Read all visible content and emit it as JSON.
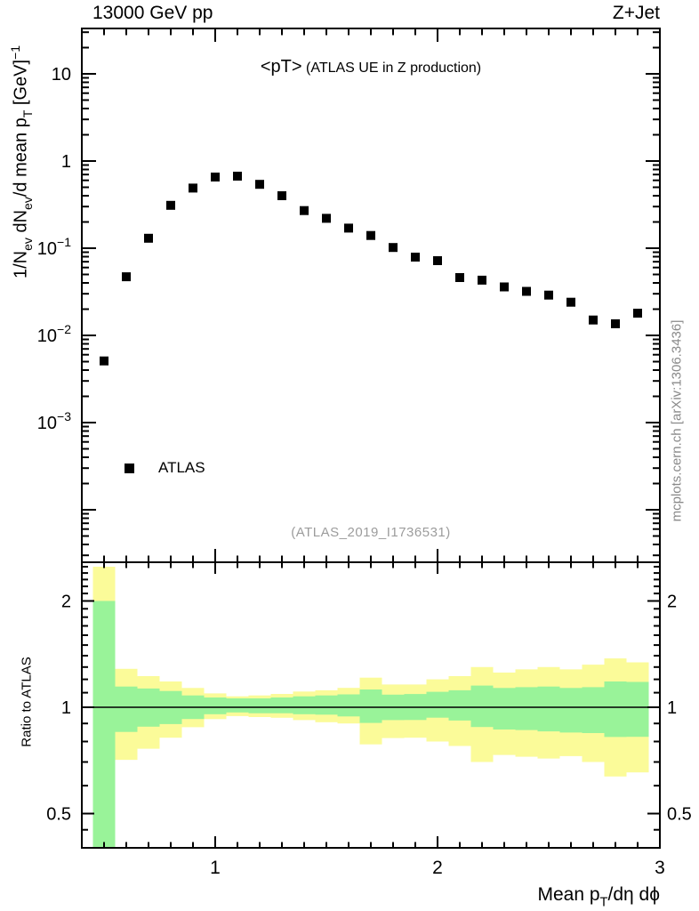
{
  "header": {
    "energy": "13000 GeV pp",
    "process": "Z+Jet"
  },
  "title": {
    "main": "<pT>",
    "sub": "(ATLAS UE in Z production)"
  },
  "legend": {
    "label": "ATLAS",
    "marker": "filled-square-icon"
  },
  "watermark": "(ATLAS_2019_I1736531)",
  "credit": "mcplots.cern.ch [arXiv:1306.3436]",
  "colors": {
    "band_yellow": "#fbfb99",
    "band_green": "#99f399",
    "marker": "#000000",
    "frame": "#000000",
    "watermark_gray": "#9c9c9c",
    "credit_gray": "#8a8a8a"
  },
  "axes": {
    "x": {
      "min": 0.4,
      "max": 3.0,
      "scale": "linear",
      "minor_step": 0.1,
      "major_ticks": [
        {
          "v": 1,
          "label": "1"
        },
        {
          "v": 2,
          "label": "2"
        },
        {
          "v": 3,
          "label": "3"
        }
      ],
      "label_parts": [
        {
          "t": "Mean p"
        },
        {
          "t": "T",
          "s": "sub"
        },
        {
          "t": "/dη dϕ"
        }
      ]
    },
    "y_main": {
      "min": 2.5e-05,
      "max": 33,
      "scale": "log",
      "labeled_ticks": [
        {
          "v": 10,
          "base": "10",
          "exp": ""
        },
        {
          "v": 1,
          "base": "1",
          "exp": ""
        },
        {
          "v": 0.1,
          "base": "10",
          "exp": "−1"
        },
        {
          "v": 0.01,
          "base": "10",
          "exp": "−2"
        },
        {
          "v": 0.001,
          "base": "10",
          "exp": "−3"
        }
      ],
      "label_parts": [
        {
          "t": "1/N"
        },
        {
          "t": "ev",
          "s": "sub"
        },
        {
          "t": " dN"
        },
        {
          "t": "ev",
          "s": "sub"
        },
        {
          "t": "/d mean p"
        },
        {
          "t": "T",
          "s": "sub"
        },
        {
          "t": " [GeV]"
        },
        {
          "t": "−1",
          "s": "sup"
        }
      ]
    },
    "y_ratio": {
      "min": 0.4,
      "max": 2.57,
      "scale": "log",
      "labeled_ticks": [
        {
          "v": 2,
          "label": "2"
        },
        {
          "v": 1,
          "label": "1"
        },
        {
          "v": 0.5,
          "label": "0.5"
        }
      ],
      "label": "Ratio to ATLAS"
    }
  },
  "chart_data": [
    {
      "type": "scatter",
      "title": "<pT> (ATLAS UE in Z production)",
      "xlabel": "Mean pT/dη dϕ",
      "ylabel": "1/Nev dNev/d mean pT [GeV]^-1",
      "xlim": [
        0.4,
        3.0
      ],
      "ylim": [
        2.5e-05,
        33
      ],
      "xscale": "linear",
      "yscale": "log",
      "series": [
        {
          "name": "ATLAS",
          "marker": "filled-square",
          "color": "#000000",
          "x": [
            0.5,
            0.6,
            0.7,
            0.8,
            0.9,
            1.0,
            1.1,
            1.2,
            1.3,
            1.4,
            1.5,
            1.6,
            1.7,
            1.8,
            1.9,
            2.0,
            2.1,
            2.2,
            2.3,
            2.4,
            2.5,
            2.6,
            2.7,
            2.8,
            2.9
          ],
          "y": [
            0.0051,
            0.047,
            0.13,
            0.31,
            0.49,
            0.655,
            0.67,
            0.54,
            0.4,
            0.27,
            0.22,
            0.17,
            0.14,
            0.102,
            0.079,
            0.072,
            0.046,
            0.043,
            0.036,
            0.032,
            0.029,
            0.024,
            0.015,
            0.0136,
            0.018
          ]
        }
      ]
    },
    {
      "type": "area",
      "name": "ratio-uncertainty-bands",
      "ylabel": "Ratio to ATLAS",
      "ylim": [
        0.4,
        2.57
      ],
      "yscale": "log",
      "reference_line": 1,
      "bin_width": 0.1,
      "x": [
        0.5,
        0.6,
        0.7,
        0.8,
        0.9,
        1.0,
        1.1,
        1.2,
        1.3,
        1.4,
        1.5,
        1.6,
        1.7,
        1.8,
        1.9,
        2.0,
        2.1,
        2.2,
        2.3,
        2.4,
        2.5,
        2.6,
        2.7,
        2.8,
        2.9
      ],
      "yellow_lo": [
        0.35,
        0.71,
        0.763,
        0.82,
        0.878,
        0.926,
        0.944,
        0.938,
        0.934,
        0.92,
        0.907,
        0.9,
        0.785,
        0.818,
        0.82,
        0.8,
        0.777,
        0.7,
        0.733,
        0.724,
        0.716,
        0.727,
        0.7,
        0.637,
        0.654
      ],
      "yellow_hi": [
        2.5,
        1.285,
        1.225,
        1.183,
        1.134,
        1.095,
        1.074,
        1.08,
        1.091,
        1.108,
        1.117,
        1.135,
        1.213,
        1.16,
        1.16,
        1.2,
        1.225,
        1.3,
        1.254,
        1.28,
        1.3,
        1.28,
        1.32,
        1.375,
        1.34
      ],
      "green_lo": [
        0.35,
        0.852,
        0.881,
        0.896,
        0.926,
        0.956,
        0.967,
        0.962,
        0.962,
        0.956,
        0.953,
        0.942,
        0.903,
        0.92,
        0.92,
        0.934,
        0.917,
        0.879,
        0.865,
        0.862,
        0.855,
        0.848,
        0.845,
        0.824,
        0.825
      ],
      "green_hi": [
        2.0,
        1.145,
        1.13,
        1.112,
        1.08,
        1.066,
        1.06,
        1.06,
        1.066,
        1.074,
        1.08,
        1.088,
        1.123,
        1.086,
        1.09,
        1.106,
        1.117,
        1.152,
        1.134,
        1.14,
        1.145,
        1.134,
        1.14,
        1.183,
        1.18
      ]
    }
  ]
}
